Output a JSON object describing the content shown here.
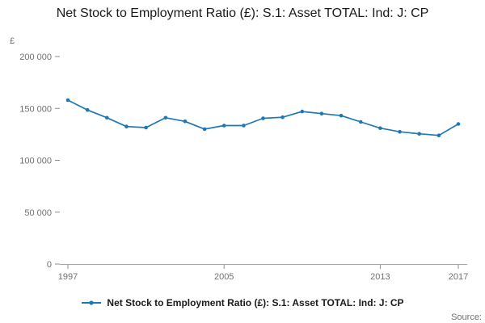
{
  "header": {
    "title": "Net Stock to Employment Ratio (£): S.1: Asset TOTAL: Ind: J: CP"
  },
  "legend": {
    "label": "Net Stock to Employment Ratio (£): S.1: Asset TOTAL: Ind: J: CP"
  },
  "source": {
    "label": "Source:"
  },
  "colors": {
    "line": "#1f77b4",
    "tick_text": "#707070",
    "title_text": "#1a1a1a"
  },
  "chart_data": {
    "type": "line",
    "title": "Net Stock to Employment Ratio (£): S.1: Asset TOTAL: Ind: J: CP",
    "xlabel": "",
    "ylabel": "£",
    "ylim": [
      0,
      200000
    ],
    "xlim": [
      1997,
      2017
    ],
    "grid": false,
    "legend_position": "bottom",
    "x": [
      1997,
      1998,
      1999,
      2000,
      2001,
      2002,
      2003,
      2004,
      2005,
      2006,
      2007,
      2008,
      2009,
      2010,
      2011,
      2012,
      2013,
      2014,
      2015,
      2016,
      2017
    ],
    "values": [
      158000,
      148500,
      141000,
      132500,
      131500,
      141000,
      137500,
      130000,
      133500,
      133500,
      140500,
      141500,
      147000,
      145000,
      143000,
      137000,
      131000,
      127500,
      125500,
      124000,
      135000
    ],
    "y_ticks": [
      {
        "value": 0,
        "label": "0"
      },
      {
        "value": 50000,
        "label": "50 000"
      },
      {
        "value": 100000,
        "label": "100 000"
      },
      {
        "value": 150000,
        "label": "150 000"
      },
      {
        "value": 200000,
        "label": "200 000"
      }
    ],
    "x_ticks": [
      {
        "value": 1997,
        "label": "1997"
      },
      {
        "value": 2005,
        "label": "2005"
      },
      {
        "value": 2013,
        "label": "2013"
      },
      {
        "value": 2017,
        "label": "2017"
      }
    ]
  }
}
